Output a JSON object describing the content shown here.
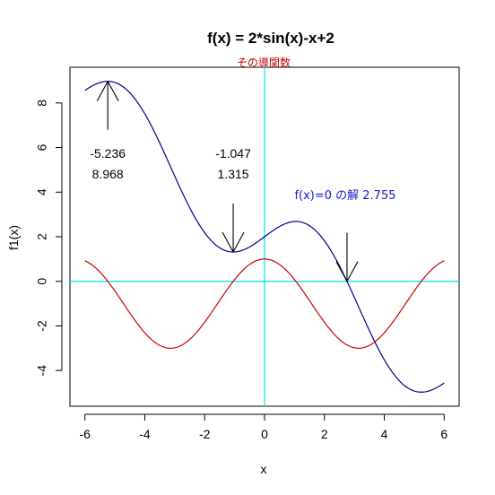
{
  "chart_data": {
    "type": "line",
    "title": "f(x) = 2*sin(x)-x+2",
    "subtitle": "その導関数",
    "xlabel": "x",
    "ylabel": "f1(x)",
    "xlim": [
      -6.5,
      6.5
    ],
    "ylim": [
      -5.6,
      9.6
    ],
    "x_ticks": [
      -6,
      -4,
      -2,
      0,
      2,
      4,
      6
    ],
    "y_ticks": [
      -4,
      -2,
      0,
      2,
      4,
      6,
      8
    ],
    "grid": false,
    "colors": {
      "f": "#00008b",
      "derivative": "#cc0000",
      "reference_lines": "#00e5ee",
      "arrows": "#000000",
      "root_label": "#1a1acc"
    },
    "series": [
      {
        "key": "f",
        "formula": "2*sin(x)-x+2",
        "x_range": [
          -6,
          6
        ]
      },
      {
        "key": "derivative",
        "formula": "2*cos(x)-1",
        "x_range": [
          -6,
          6
        ]
      }
    ],
    "annotations": [
      {
        "x": -5.236,
        "y": 8.968,
        "label_x": "-5.236",
        "label_y": "8.968",
        "direction": "up"
      },
      {
        "x": -1.047,
        "y": 1.315,
        "label_x": "-1.047",
        "label_y": "1.315",
        "direction": "down"
      },
      {
        "x": 2.755,
        "y": 0,
        "label": "f(x)=0 の解 2.755",
        "direction": "down"
      }
    ]
  }
}
